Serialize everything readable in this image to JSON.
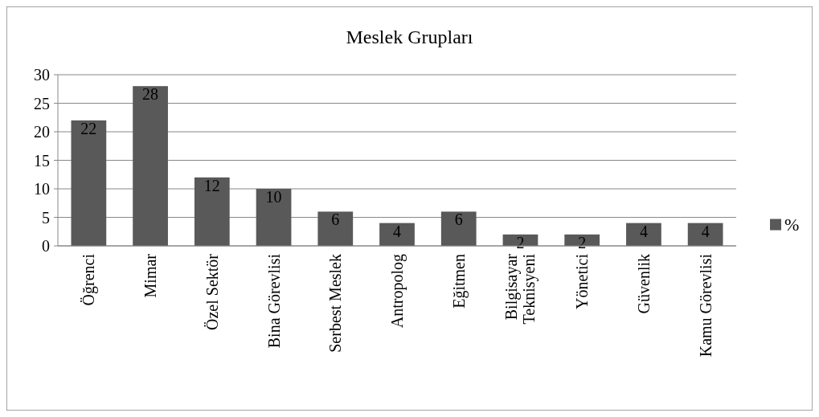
{
  "chart_data": {
    "type": "bar",
    "title": "Meslek Grupları",
    "categories": [
      "Öğrenci",
      "Mimar",
      "Özel Sektör",
      "Bina Görevlisi",
      "Serbest Meslek",
      "Antropolog",
      "Eğitmen",
      "Bilgisayar Teknisyeni",
      "Yönetici",
      "Güvenlik",
      "Kamu Görevlisi"
    ],
    "series": [
      {
        "name": "%",
        "color": "#595959",
        "values": [
          22,
          28,
          12,
          10,
          6,
          4,
          6,
          2,
          2,
          4,
          4
        ]
      }
    ],
    "ylim": [
      0,
      30
    ],
    "yticks": [
      0,
      5,
      10,
      15,
      20,
      25,
      30
    ],
    "grid": "y",
    "legend": "right",
    "data_labels": true
  }
}
